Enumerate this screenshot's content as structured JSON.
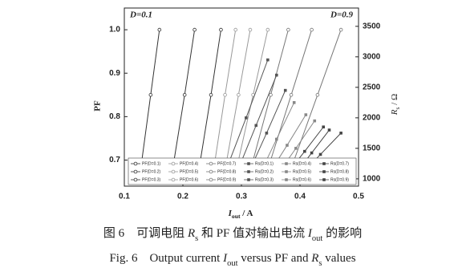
{
  "chart_data": {
    "type": "line",
    "y_label": "PF",
    "x_label": [
      {
        "text": "I",
        "italic": true
      },
      {
        "text": "out",
        "sub": true
      },
      {
        "text": " / A"
      }
    ],
    "y2_label": [
      {
        "text": "R",
        "italic": true
      },
      {
        "text": "s",
        "sub": true
      },
      {
        "text": " / Ω"
      }
    ],
    "annotations": [
      "D=0.1",
      "D=0.9"
    ],
    "xlim": [
      0.1,
      0.5
    ],
    "xticks": [
      0.1,
      0.2,
      0.3,
      0.4,
      0.5
    ],
    "ylim": [
      0.64,
      1.05
    ],
    "yticks": [
      0.7,
      0.8,
      0.9,
      {
        "value": 1.0,
        "label": "1.0"
      }
    ],
    "y2lim": [
      880,
      3800
    ],
    "y2ticks": [
      1000,
      1500,
      2000,
      2500,
      3000,
      3500
    ],
    "legend": "bottom",
    "series": [
      {
        "name": "PF(D=0.1)",
        "color": "#333333",
        "marker": "circle",
        "x": [
          0.13,
          0.145,
          0.16
        ],
        "values": [
          0.7,
          0.85,
          1.0
        ]
      },
      {
        "name": "PF(D=0.2)",
        "color": "#333333",
        "marker": "circle",
        "x": [
          0.185,
          0.203,
          0.22
        ],
        "values": [
          0.7,
          0.85,
          1.0
        ]
      },
      {
        "name": "PF(D=0.3)",
        "color": "#333333",
        "marker": "circle",
        "x": [
          0.23,
          0.248,
          0.265
        ],
        "values": [
          0.7,
          0.85,
          1.0
        ]
      },
      {
        "name": "PF(D=0.4)",
        "color": "#999999",
        "marker": "circle",
        "x": [
          0.255,
          0.272,
          0.29
        ],
        "values": [
          0.7,
          0.85,
          1.0
        ]
      },
      {
        "name": "PF(D=0.5)",
        "color": "#999999",
        "marker": "circle",
        "x": [
          0.275,
          0.295,
          0.315
        ],
        "values": [
          0.7,
          0.85,
          1.0
        ]
      },
      {
        "name": "PF(D=0.6)",
        "color": "#999999",
        "marker": "circle",
        "x": [
          0.295,
          0.32,
          0.345
        ],
        "values": [
          0.7,
          0.85,
          1.0
        ]
      },
      {
        "name": "PF(D=0.7)",
        "color": "#777777",
        "marker": "circle",
        "x": [
          0.32,
          0.35,
          0.38
        ],
        "values": [
          0.7,
          0.85,
          1.0
        ]
      },
      {
        "name": "PF(D=0.8)",
        "color": "#777777",
        "marker": "circle",
        "x": [
          0.35,
          0.385,
          0.42
        ],
        "values": [
          0.7,
          0.85,
          1.0
        ]
      },
      {
        "name": "PF(D=0.9)",
        "color": "#777777",
        "marker": "circle",
        "x": [
          0.39,
          0.43,
          0.47
        ],
        "values": [
          0.7,
          0.85,
          1.0
        ]
      },
      {
        "name": "Rs(D=0.1)",
        "color": "#555555",
        "marker": "square",
        "axis": "y2",
        "x": [
          0.27,
          0.308,
          0.345
        ],
        "values": [
          1050,
          2000,
          2950
        ]
      },
      {
        "name": "Rs(D=0.2)",
        "color": "#555555",
        "marker": "square",
        "axis": "y2",
        "x": [
          0.29,
          0.325,
          0.36
        ],
        "values": [
          1050,
          1875,
          2700
        ]
      },
      {
        "name": "Rs(D=0.3)",
        "color": "#555555",
        "marker": "square",
        "axis": "y2",
        "x": [
          0.31,
          0.343,
          0.375
        ],
        "values": [
          1050,
          1750,
          2450
        ]
      },
      {
        "name": "Rs(D=0.4)",
        "color": "#888888",
        "marker": "square",
        "axis": "y2",
        "x": [
          0.33,
          0.36,
          0.39
        ],
        "values": [
          1050,
          1650,
          2250
        ]
      },
      {
        "name": "Rs(D=0.5)",
        "color": "#888888",
        "marker": "square",
        "axis": "y2",
        "x": [
          0.345,
          0.378,
          0.41
        ],
        "values": [
          1050,
          1550,
          2050
        ]
      },
      {
        "name": "Rs(D=0.6)",
        "color": "#888888",
        "marker": "square",
        "axis": "y2",
        "x": [
          0.36,
          0.393,
          0.425
        ],
        "values": [
          1050,
          1500,
          1950
        ]
      },
      {
        "name": "Rs(D=0.7)",
        "color": "#444444",
        "marker": "square",
        "axis": "y2",
        "x": [
          0.375,
          0.408,
          0.44
        ],
        "values": [
          1050,
          1450,
          1850
        ]
      },
      {
        "name": "Rs(D=0.8)",
        "color": "#444444",
        "marker": "square",
        "axis": "y2",
        "x": [
          0.39,
          0.42,
          0.45
        ],
        "values": [
          1050,
          1425,
          1800
        ]
      },
      {
        "name": "Rs(D=0.9)",
        "color": "#444444",
        "marker": "square",
        "axis": "y2",
        "x": [
          0.4,
          0.435,
          0.47
        ],
        "values": [
          1050,
          1400,
          1750
        ]
      }
    ]
  },
  "caption": {
    "cn": [
      {
        "text": "图 6　可调电阻 "
      },
      {
        "text": "R",
        "italic": true
      },
      {
        "text": "s",
        "sub": true
      },
      {
        "text": " 和 PF 值对输出电流 "
      },
      {
        "text": "I",
        "italic": true
      },
      {
        "text": "out",
        "sub": true
      },
      {
        "text": " 的影响"
      }
    ],
    "en": [
      {
        "text": "Fig. 6　Output current "
      },
      {
        "text": "I",
        "italic": true
      },
      {
        "text": "out",
        "sub": true
      },
      {
        "text": " versus PF and "
      },
      {
        "text": "R",
        "italic": true
      },
      {
        "text": "s",
        "sub": true
      },
      {
        "text": " values"
      }
    ]
  }
}
